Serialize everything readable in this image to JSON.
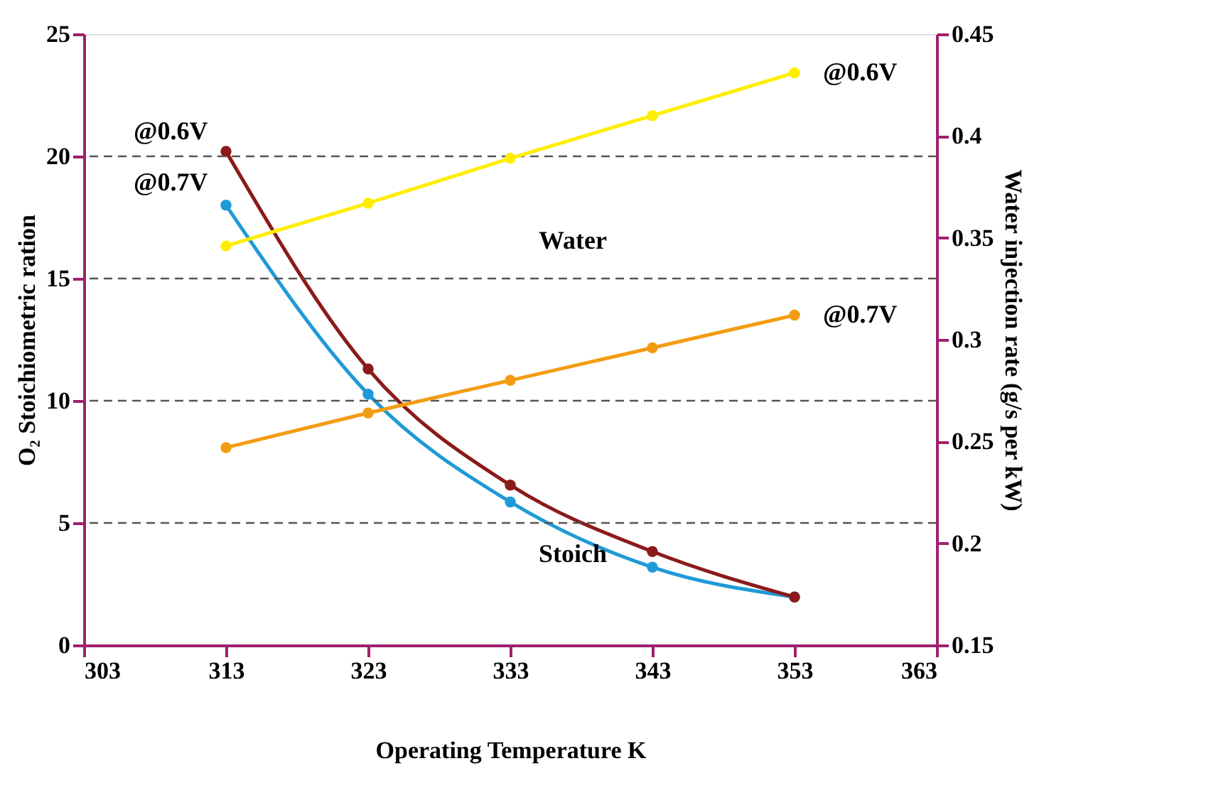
{
  "chart_data": {
    "type": "line",
    "xlabel": "Operating Temperature K",
    "ylabel": "O₂ Stoichiometric ration",
    "y2label": "Water injection rate (g/s per kW)",
    "x": [
      313,
      323,
      333,
      343,
      353
    ],
    "series": [
      {
        "color": "#1f9ad6",
        "values": [
          18.0,
          10.27,
          5.86,
          3.19,
          1.97
        ],
        "axis": "y"
      },
      {
        "color": "#8b1a1a",
        "values": [
          20.2,
          11.3,
          6.55,
          3.83,
          1.97
        ],
        "axis": "y"
      },
      {
        "color": "#ffee00",
        "values": [
          0.346,
          0.367,
          0.389,
          0.41,
          0.431
        ],
        "axis": "y2"
      },
      {
        "color": "#f39c12",
        "values": [
          0.247,
          0.264,
          0.28,
          0.296,
          0.312
        ],
        "axis": "y2"
      }
    ],
    "xlim": [
      303,
      363
    ],
    "xticks": [
      303,
      313,
      323,
      333,
      343,
      353,
      363
    ],
    "ylim": [
      0,
      25
    ],
    "yticks": [
      0,
      5,
      10,
      15,
      20,
      25
    ],
    "y2lim": [
      0.15,
      0.45
    ],
    "y2ticks": [
      0.15,
      {
        "value": 0.2,
        "label": "0.2"
      },
      0.25,
      {
        "value": 0.3,
        "label": "0.3"
      },
      0.35,
      {
        "value": 0.4,
        "label": "0.4"
      },
      0.45
    ],
    "ref_lines": [
      {
        "axis": "y",
        "value": 5,
        "color": "#555555",
        "line_style": "dashed"
      },
      {
        "axis": "y",
        "value": 10,
        "color": "#555555",
        "line_style": "dashed"
      },
      {
        "axis": "y",
        "value": 15,
        "color": "#555555",
        "line_style": "dashed"
      },
      {
        "axis": "y",
        "value": 20,
        "color": "#555555",
        "line_style": "dashed"
      }
    ],
    "annotations": [
      "@0.6V",
      "@0.7V",
      "@0.6V",
      "@0.7V",
      "Water",
      "Stoich"
    ],
    "marker": "circle",
    "line_style": "solid",
    "grid": false
  }
}
